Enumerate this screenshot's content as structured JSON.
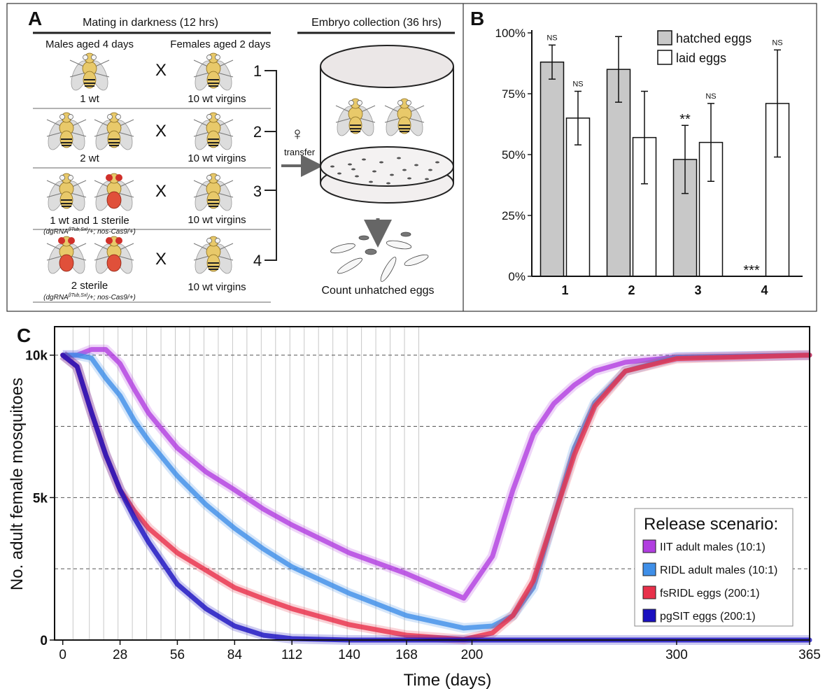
{
  "panel_a": {
    "label": "A",
    "mating_title": "Mating in darkness (12 hrs)",
    "collection_title": "Embryo collection  (36 hrs)",
    "males_header": "Males aged 4 days",
    "females_header": "Females aged 2 days",
    "rows": [
      {
        "number": "1",
        "males": "1 wt",
        "cross": "X",
        "females": "10 wt virgins"
      },
      {
        "number": "2",
        "males": "2 wt",
        "cross": "X",
        "females": "10 wt virgins"
      },
      {
        "number": "3",
        "males": "1 wt and 1 sterile",
        "genotype": [
          "(dgRNA",
          "βTub,Sxl",
          "/+; nos-Cas9/+)"
        ],
        "cross": "X",
        "females": "10 wt virgins"
      },
      {
        "number": "4",
        "males": "2 sterile",
        "genotype": [
          "(dgRNA",
          "βTub,Sxl",
          "/+; nos-Cas9/+)"
        ],
        "cross": "X",
        "females": "10 wt virgins"
      }
    ],
    "transfer_symbol": "♀",
    "transfer": "transfer",
    "count": "Count unhatched eggs"
  },
  "chart_data": [
    {
      "type": "bar",
      "label": "B",
      "categories": [
        "1",
        "2",
        "3",
        "4"
      ],
      "series": [
        {
          "name": "hatched eggs",
          "color": "#c8c8c8",
          "values": [
            88,
            85,
            48,
            0
          ],
          "errors": [
            7,
            13.5,
            14,
            null
          ],
          "significance": [
            "NS",
            null,
            "**",
            "***"
          ]
        },
        {
          "name": "laid eggs",
          "color": "#ffffff",
          "values": [
            65,
            57,
            55,
            71
          ],
          "errors": [
            11,
            19,
            16,
            22
          ],
          "significance": [
            "NS",
            null,
            "NS",
            "NS"
          ]
        }
      ],
      "ylim": [
        0,
        100
      ],
      "yticks": [
        {
          "value": 0,
          "label": "0%"
        },
        {
          "value": 25,
          "label": "25%"
        },
        {
          "value": 50,
          "label": "50%"
        },
        {
          "value": 75,
          "label": "75%"
        },
        {
          "value": 100,
          "label": "100%"
        }
      ],
      "legend": "upper right"
    },
    {
      "type": "line",
      "label": "C",
      "xlabel": "Time (days)",
      "ylabel": "No. adult female mosquitoes",
      "x": [
        0,
        7,
        14,
        21,
        28,
        35,
        42,
        56,
        70,
        84,
        98,
        112,
        140,
        168,
        196,
        210,
        220,
        230,
        240,
        250,
        260,
        275,
        300,
        365
      ],
      "series": [
        {
          "name": "IIT adult males (10:1)",
          "color": "#b13ee0",
          "values": [
            10000,
            10000,
            10200,
            10200,
            9700,
            8800,
            7960,
            6740,
            5900,
            5270,
            4600,
            4040,
            3060,
            2330,
            1470,
            2940,
            5270,
            7230,
            8300,
            8950,
            9440,
            9750,
            9930,
            10000
          ]
        },
        {
          "name": "RIDL adult males (10:1)",
          "color": "#3f8fe8",
          "values": [
            10000,
            10000,
            9900,
            9190,
            8580,
            7700,
            6990,
            5760,
            4750,
            3920,
            3200,
            2570,
            1640,
            860,
            420,
            490,
            860,
            1840,
            4290,
            6740,
            8330,
            9440,
            9930,
            10000
          ]
        },
        {
          "name": "fsRIDL eggs (200:1)",
          "color": "#e8304a",
          "values": [
            10000,
            9600,
            8000,
            6500,
            5270,
            4530,
            3920,
            3060,
            2450,
            1840,
            1450,
            1100,
            540,
            170,
            20,
            250,
            860,
            2080,
            4290,
            6500,
            8210,
            9440,
            9880,
            10000
          ]
        },
        {
          "name": "pgSIT eggs (200:1)",
          "color": "#1a10c0",
          "values": [
            10000,
            9600,
            8000,
            6500,
            5270,
            4290,
            3430,
            1960,
            1100,
            490,
            170,
            50,
            0,
            0,
            0,
            0,
            0,
            0,
            0,
            0,
            0,
            0,
            0,
            0
          ]
        }
      ],
      "xlim": [
        -4,
        365
      ],
      "xticks": [
        0,
        28,
        56,
        84,
        112,
        140,
        168,
        200,
        300,
        365
      ],
      "ylim": [
        0,
        11000
      ],
      "yticks": [
        0,
        {
          "value": 5000,
          "label": "5k"
        },
        {
          "value": 10000,
          "label": "10k"
        }
      ],
      "hlines": [
        2500,
        5000,
        7500,
        10000
      ],
      "release_days": [
        5,
        13,
        20,
        27,
        34,
        41,
        48,
        55,
        62,
        69,
        76,
        83,
        90,
        97,
        104,
        111,
        118,
        125,
        132,
        139,
        146,
        153,
        160,
        167,
        174
      ],
      "legend_title": "Release scenario:",
      "legend": "lower right"
    }
  ]
}
